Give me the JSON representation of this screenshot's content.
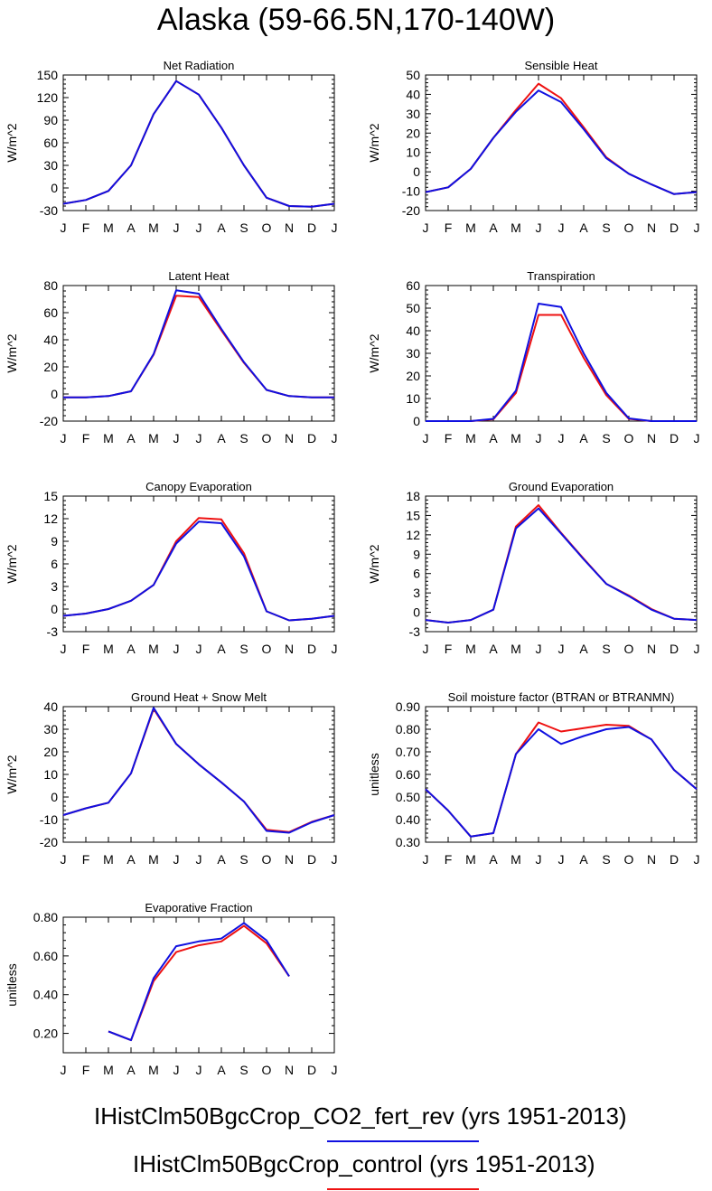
{
  "title": "Alaska (59-66.5N,170-140W)",
  "colors": {
    "series_co2": "#1010e0",
    "series_control": "#ee1111",
    "axis": "#000000"
  },
  "legend": [
    {
      "label": "IHistClm50BgcCrop_CO2_fert_rev (yrs 1951-2013)",
      "color": "#1010e0"
    },
    {
      "label": "IHistClm50BgcCrop_control (yrs 1951-2013)",
      "color": "#ee1111"
    }
  ],
  "chart_data": [
    {
      "type": "line",
      "title": "Net Radiation",
      "xlabel": "",
      "ylabel": "W/m^2",
      "categories": [
        "J",
        "F",
        "M",
        "A",
        "M",
        "J",
        "J",
        "A",
        "S",
        "O",
        "N",
        "D",
        "J"
      ],
      "ylim": [
        -30,
        150
      ],
      "yticks": [
        "-30",
        "0",
        "30",
        "60",
        "90",
        "120",
        "150"
      ],
      "series": [
        {
          "color": "#ee1111",
          "values": [
            -21,
            -16,
            -4,
            30,
            98,
            142,
            124,
            80,
            30,
            -13,
            -24,
            -25,
            -21
          ]
        },
        {
          "color": "#1010e0",
          "values": [
            -21,
            -16,
            -4,
            30,
            98,
            142,
            124,
            80,
            30,
            -13,
            -24,
            -25,
            -21
          ]
        }
      ]
    },
    {
      "type": "line",
      "title": "Sensible Heat",
      "xlabel": "",
      "ylabel": "W/m^2",
      "categories": [
        "J",
        "F",
        "M",
        "A",
        "M",
        "J",
        "J",
        "A",
        "S",
        "O",
        "N",
        "D",
        "J"
      ],
      "ylim": [
        -20,
        50
      ],
      "yticks": [
        "-20",
        "-10",
        "0",
        "10",
        "20",
        "30",
        "40",
        "50"
      ],
      "series": [
        {
          "color": "#ee1111",
          "values": [
            -10.5,
            -8,
            1.5,
            17.5,
            32,
            45.5,
            38,
            23,
            7.5,
            -1,
            -6.5,
            -11.5,
            -10.5
          ]
        },
        {
          "color": "#1010e0",
          "values": [
            -10.5,
            -8,
            1.5,
            17.5,
            31,
            42,
            36,
            22,
            7,
            -1,
            -6.5,
            -11.5,
            -10.5
          ]
        }
      ]
    },
    {
      "type": "line",
      "title": "Latent Heat",
      "xlabel": "",
      "ylabel": "W/m^2",
      "categories": [
        "J",
        "F",
        "M",
        "A",
        "M",
        "J",
        "J",
        "A",
        "S",
        "O",
        "N",
        "D",
        "J"
      ],
      "ylim": [
        -20,
        80
      ],
      "yticks": [
        "-20",
        "0",
        "20",
        "40",
        "60",
        "80"
      ],
      "series": [
        {
          "color": "#ee1111",
          "values": [
            -2.5,
            -2.5,
            -1.5,
            2,
            29,
            72.5,
            71.5,
            47,
            23,
            3,
            -1.5,
            -2.5,
            -2.5
          ]
        },
        {
          "color": "#1010e0",
          "values": [
            -2.5,
            -2.5,
            -1.5,
            2,
            29.5,
            76.5,
            74,
            48,
            23.5,
            3,
            -1.5,
            -2.5,
            -2.5
          ]
        }
      ]
    },
    {
      "type": "line",
      "title": "Transpiration",
      "xlabel": "",
      "ylabel": "W/m^2",
      "categories": [
        "J",
        "F",
        "M",
        "A",
        "M",
        "J",
        "J",
        "A",
        "S",
        "O",
        "N",
        "D",
        "J"
      ],
      "ylim": [
        0,
        60
      ],
      "yticks": [
        "0",
        "10",
        "20",
        "30",
        "40",
        "50",
        "60"
      ],
      "series": [
        {
          "color": "#ee1111",
          "values": [
            0,
            0,
            0,
            0.8,
            12.5,
            47,
            47,
            28,
            11.5,
            1,
            0,
            0,
            0
          ]
        },
        {
          "color": "#1010e0",
          "values": [
            0,
            0,
            0,
            1,
            13.5,
            52,
            50.5,
            30,
            12.5,
            1.2,
            0,
            0,
            0
          ]
        }
      ]
    },
    {
      "type": "line",
      "title": "Canopy Evaporation",
      "xlabel": "",
      "ylabel": "W/m^2",
      "categories": [
        "J",
        "F",
        "M",
        "A",
        "M",
        "J",
        "J",
        "A",
        "S",
        "O",
        "N",
        "D",
        "J"
      ],
      "ylim": [
        -3,
        15
      ],
      "yticks": [
        "-3",
        "0",
        "3",
        "6",
        "9",
        "12",
        "15"
      ],
      "series": [
        {
          "color": "#ee1111",
          "values": [
            -0.9,
            -0.6,
            0,
            1.1,
            3.2,
            9,
            12.1,
            11.9,
            7.4,
            -0.3,
            -1.5,
            -1.3,
            -0.9
          ]
        },
        {
          "color": "#1010e0",
          "values": [
            -0.9,
            -0.6,
            0,
            1.1,
            3.2,
            8.7,
            11.6,
            11.4,
            7,
            -0.3,
            -1.5,
            -1.3,
            -0.9
          ]
        }
      ]
    },
    {
      "type": "line",
      "title": "Ground Evaporation",
      "xlabel": "",
      "ylabel": "W/m^2",
      "categories": [
        "J",
        "F",
        "M",
        "A",
        "M",
        "J",
        "J",
        "A",
        "S",
        "O",
        "N",
        "D",
        "J"
      ],
      "ylim": [
        -3,
        18
      ],
      "yticks": [
        "-3",
        "0",
        "3",
        "6",
        "9",
        "12",
        "15",
        "18"
      ],
      "series": [
        {
          "color": "#ee1111",
          "values": [
            -1.2,
            -1.6,
            -1.2,
            0.4,
            13.3,
            16.6,
            12.3,
            8.3,
            4.4,
            2.6,
            0.5,
            -1,
            -1.2
          ]
        },
        {
          "color": "#1010e0",
          "values": [
            -1.2,
            -1.6,
            -1.2,
            0.4,
            13,
            16.1,
            12.2,
            8.2,
            4.4,
            2.5,
            0.4,
            -1,
            -1.2
          ]
        }
      ]
    },
    {
      "type": "line",
      "title": "Ground Heat + Snow Melt",
      "xlabel": "",
      "ylabel": "W/m^2",
      "categories": [
        "J",
        "F",
        "M",
        "A",
        "M",
        "J",
        "J",
        "A",
        "S",
        "O",
        "N",
        "D",
        "J"
      ],
      "ylim": [
        -20,
        40
      ],
      "yticks": [
        "-20",
        "-10",
        "0",
        "10",
        "20",
        "30",
        "40"
      ],
      "series": [
        {
          "color": "#ee1111",
          "values": [
            -8,
            -5,
            -2.5,
            10.5,
            39,
            23.5,
            14.5,
            6.5,
            -2,
            -14.5,
            -15.5,
            -11,
            -8
          ]
        },
        {
          "color": "#1010e0",
          "values": [
            -8,
            -5,
            -2.5,
            10.5,
            39.5,
            23.5,
            14.5,
            6.5,
            -2,
            -15,
            -15.8,
            -11.2,
            -8
          ]
        }
      ]
    },
    {
      "type": "line",
      "title": "Soil moisture factor (BTRAN or BTRANMN)",
      "xlabel": "",
      "ylabel": "unitless",
      "categories": [
        "J",
        "F",
        "M",
        "A",
        "M",
        "J",
        "J",
        "A",
        "S",
        "O",
        "N",
        "D",
        "J"
      ],
      "ylim": [
        0.3,
        0.9
      ],
      "yticks": [
        "0.30",
        "0.40",
        "0.50",
        "0.60",
        "0.70",
        "0.80",
        "0.90"
      ],
      "series": [
        {
          "color": "#ee1111",
          "values": [
            0.535,
            0.44,
            0.325,
            0.34,
            0.69,
            0.83,
            0.79,
            0.805,
            0.82,
            0.815,
            0.755,
            0.62,
            0.535
          ]
        },
        {
          "color": "#1010e0",
          "values": [
            0.535,
            0.44,
            0.325,
            0.34,
            0.69,
            0.8,
            0.735,
            0.77,
            0.8,
            0.81,
            0.755,
            0.62,
            0.535
          ]
        }
      ]
    },
    {
      "type": "line",
      "title": "Evaporative Fraction",
      "xlabel": "",
      "ylabel": "unitless",
      "categories": [
        "J",
        "F",
        "M",
        "A",
        "M",
        "J",
        "J",
        "A",
        "S",
        "O",
        "N",
        "D",
        "J"
      ],
      "ylim": [
        0.1,
        0.8
      ],
      "yticks": [
        "0.20",
        "0.40",
        "0.60",
        "0.80"
      ],
      "series": [
        {
          "color": "#ee1111",
          "values": [
            null,
            null,
            0.21,
            0.165,
            0.47,
            0.62,
            0.655,
            0.675,
            0.755,
            0.665,
            0.495,
            null,
            null
          ]
        },
        {
          "color": "#1010e0",
          "values": [
            null,
            null,
            0.21,
            0.165,
            0.485,
            0.65,
            0.675,
            0.69,
            0.77,
            0.68,
            0.495,
            null,
            null
          ]
        }
      ]
    }
  ]
}
